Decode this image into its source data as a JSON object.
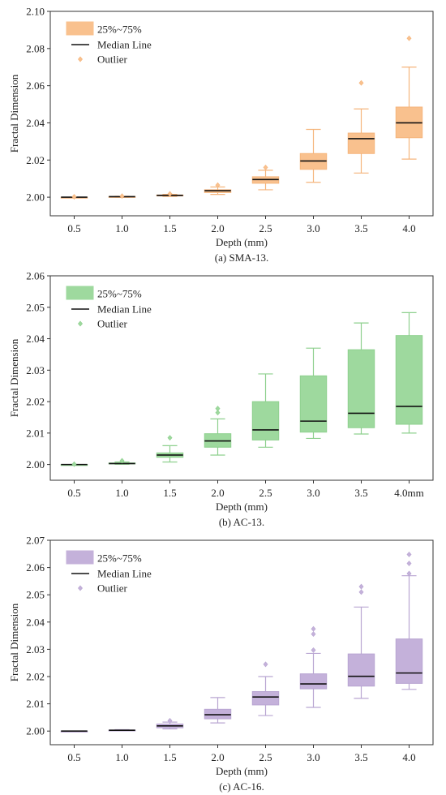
{
  "figure": {
    "panels": [
      {
        "caption": "(a) SMA-13.",
        "color": "#f9c18e",
        "stroke": "#f5b57c",
        "legend": {
          "box": "25%~75%",
          "median": "Median Line",
          "outlier": "Outlier"
        },
        "chart_data": {
          "type": "boxplot",
          "title": "",
          "xlabel": "Depth (mm)",
          "ylabel": "Fractal Dimension",
          "ylim": [
            1.99,
            2.1
          ],
          "yticks": [
            "2.00",
            "2.02",
            "2.04",
            "2.06",
            "2.08",
            "2.10"
          ],
          "ytick_values": [
            2.0,
            2.02,
            2.04,
            2.06,
            2.08,
            2.1
          ],
          "categories": [
            "0.5",
            "1.0",
            "1.5",
            "2.0",
            "2.5",
            "3.0",
            "3.5",
            "4.0"
          ],
          "boxes": [
            {
              "whisker_low": 2.0,
              "q1": 2.0,
              "median": 2.0,
              "q3": 2.0,
              "whisker_high": 2.0,
              "outliers": [
                2.0002
              ]
            },
            {
              "whisker_low": 2.0,
              "q1": 2.0002,
              "median": 2.0003,
              "q3": 2.0004,
              "whisker_high": 2.0005,
              "outliers": [
                2.0006
              ]
            },
            {
              "whisker_low": 2.0004,
              "q1": 2.0007,
              "median": 2.001,
              "q3": 2.0012,
              "whisker_high": 2.0015,
              "outliers": [
                2.0018
              ]
            },
            {
              "whisker_low": 2.0015,
              "q1": 2.0025,
              "median": 2.0035,
              "q3": 2.004,
              "whisker_high": 2.0055,
              "outliers": [
                2.0065
              ]
            },
            {
              "whisker_low": 2.004,
              "q1": 2.0075,
              "median": 2.0095,
              "q3": 2.011,
              "whisker_high": 2.0145,
              "outliers": [
                2.016
              ]
            },
            {
              "whisker_low": 2.008,
              "q1": 2.015,
              "median": 2.0195,
              "q3": 2.0235,
              "whisker_high": 2.0365,
              "outliers": []
            },
            {
              "whisker_low": 2.013,
              "q1": 2.0235,
              "median": 2.0315,
              "q3": 2.0345,
              "whisker_high": 2.0475,
              "outliers": [
                2.0615
              ]
            },
            {
              "whisker_low": 2.0205,
              "q1": 2.032,
              "median": 2.04,
              "q3": 2.0485,
              "whisker_high": 2.07,
              "outliers": [
                2.0855
              ]
            }
          ]
        }
      },
      {
        "caption": "(b) AC-13.",
        "color": "#9ed99e",
        "stroke": "#8ed08e",
        "legend": {
          "box": "25%~75%",
          "median": "Median Line",
          "outlier": "Outlier"
        },
        "chart_data": {
          "type": "boxplot",
          "title": "",
          "xlabel": "Depth (mm)",
          "ylabel": "Fractal Dimension",
          "ylim": [
            1.995,
            2.06
          ],
          "yticks": [
            "2.00",
            "2.01",
            "2.02",
            "2.03",
            "2.04",
            "2.05",
            "2.06"
          ],
          "ytick_values": [
            2.0,
            2.01,
            2.02,
            2.03,
            2.04,
            2.05,
            2.06
          ],
          "categories": [
            "0.5",
            "1.0",
            "1.5",
            "2.0",
            "2.5",
            "3.0",
            "3.5",
            "4.0mm"
          ],
          "boxes": [
            {
              "whisker_low": 2.0,
              "q1": 2.0,
              "median": 2.0,
              "q3": 2.0,
              "whisker_high": 2.0,
              "outliers": [
                2.0001
              ]
            },
            {
              "whisker_low": 2.0001,
              "q1": 2.0002,
              "median": 2.0003,
              "q3": 2.0005,
              "whisker_high": 2.0008,
              "outliers": [
                2.0012
              ]
            },
            {
              "whisker_low": 2.0008,
              "q1": 2.0023,
              "median": 2.003,
              "q3": 2.0037,
              "whisker_high": 2.006,
              "outliers": [
                2.0085
              ]
            },
            {
              "whisker_low": 2.003,
              "q1": 2.0055,
              "median": 2.0075,
              "q3": 2.0098,
              "whisker_high": 2.0145,
              "outliers": [
                2.0165,
                2.0178
              ]
            },
            {
              "whisker_low": 2.0055,
              "q1": 2.0078,
              "median": 2.011,
              "q3": 2.02,
              "whisker_high": 2.0288,
              "outliers": []
            },
            {
              "whisker_low": 2.0083,
              "q1": 2.0103,
              "median": 2.0138,
              "q3": 2.0282,
              "whisker_high": 2.037,
              "outliers": []
            },
            {
              "whisker_low": 2.0097,
              "q1": 2.0117,
              "median": 2.0163,
              "q3": 2.0365,
              "whisker_high": 2.045,
              "outliers": []
            },
            {
              "whisker_low": 2.01,
              "q1": 2.0128,
              "median": 2.0185,
              "q3": 2.041,
              "whisker_high": 2.0483,
              "outliers": []
            }
          ]
        }
      },
      {
        "caption": "(c) AC-16.",
        "color": "#c4b1da",
        "stroke": "#b9a6d2",
        "legend": {
          "box": "25%~75%",
          "median": "Median Line",
          "outlier": "Outlier"
        },
        "chart_data": {
          "type": "boxplot",
          "title": "",
          "xlabel": "Depth (mm)",
          "ylabel": "Fractal Dimension",
          "ylim": [
            1.995,
            2.07
          ],
          "yticks": [
            "2.00",
            "2.01",
            "2.02",
            "2.03",
            "2.04",
            "2.05",
            "2.06",
            "2.07"
          ],
          "ytick_values": [
            2.0,
            2.01,
            2.02,
            2.03,
            2.04,
            2.05,
            2.06,
            2.07
          ],
          "categories": [
            "0.5",
            "1.0",
            "1.5",
            "2.0",
            "2.5",
            "3.0",
            "3.5",
            "4.0"
          ],
          "boxes": [
            {
              "whisker_low": 2.0,
              "q1": 2.0,
              "median": 2.0,
              "q3": 2.0,
              "whisker_high": 2.0,
              "outliers": []
            },
            {
              "whisker_low": 2.0001,
              "q1": 2.0002,
              "median": 2.0003,
              "q3": 2.0004,
              "whisker_high": 2.0005,
              "outliers": []
            },
            {
              "whisker_low": 2.0008,
              "q1": 2.0012,
              "median": 2.0019,
              "q3": 2.0026,
              "whisker_high": 2.0033,
              "outliers": [
                2.0038
              ]
            },
            {
              "whisker_low": 2.003,
              "q1": 2.0045,
              "median": 2.006,
              "q3": 2.008,
              "whisker_high": 2.0123,
              "outliers": []
            },
            {
              "whisker_low": 2.0057,
              "q1": 2.0096,
              "median": 2.0125,
              "q3": 2.0145,
              "whisker_high": 2.02,
              "outliers": [
                2.0245
              ]
            },
            {
              "whisker_low": 2.0087,
              "q1": 2.0155,
              "median": 2.0173,
              "q3": 2.021,
              "whisker_high": 2.0285,
              "outliers": [
                2.0297,
                2.0356,
                2.0375
              ]
            },
            {
              "whisker_low": 2.012,
              "q1": 2.0165,
              "median": 2.0201,
              "q3": 2.0283,
              "whisker_high": 2.0455,
              "outliers": [
                2.051,
                2.053
              ]
            },
            {
              "whisker_low": 2.0153,
              "q1": 2.0175,
              "median": 2.0213,
              "q3": 2.0338,
              "whisker_high": 2.057,
              "outliers": [
                2.0578,
                2.0615,
                2.0648
              ]
            }
          ]
        }
      }
    ]
  }
}
